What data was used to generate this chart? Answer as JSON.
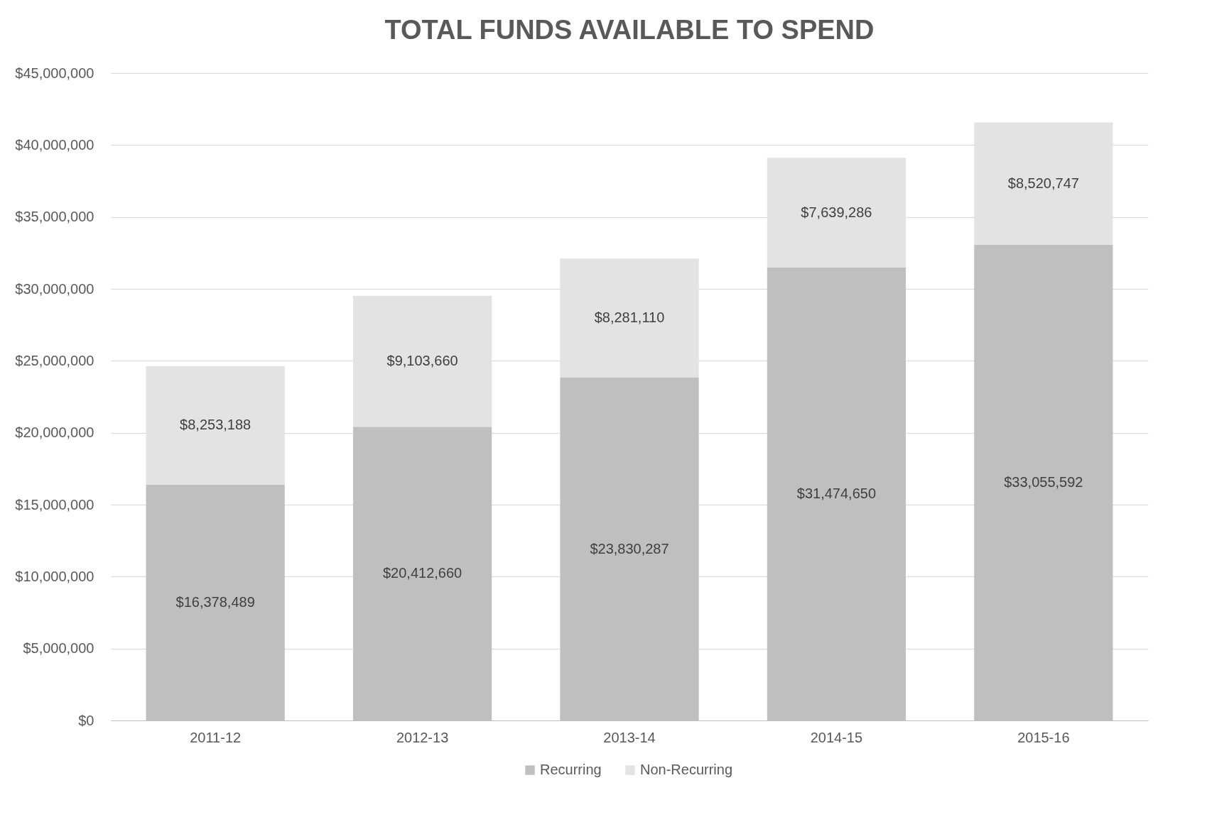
{
  "chart_data": {
    "type": "bar",
    "title": "TOTAL FUNDS AVAILABLE TO SPEND",
    "stacked": true,
    "grid": "y",
    "legend": "bottom",
    "categories": [
      "2011-12",
      "2012-13",
      "2013-14",
      "2014-15",
      "2015-16"
    ],
    "series": [
      {
        "name": "Recurring",
        "color": "#bfbfbf",
        "values": [
          16378489,
          20412660,
          23830287,
          31474650,
          33055592
        ],
        "value_labels": [
          "$16,378,489",
          "$20,412,660",
          "$23,830,287",
          "$31,474,650",
          "$33,055,592"
        ]
      },
      {
        "name": "Non-Recurring",
        "color": "#e3e3e3",
        "values": [
          8253188,
          9103660,
          8281110,
          7639286,
          8520747
        ],
        "value_labels": [
          "$8,253,188",
          "$9,103,660",
          "$8,281,110",
          "$7,639,286",
          "$8,520,747"
        ]
      }
    ],
    "ylim": [
      0,
      45000000
    ],
    "yticks": [
      {
        "value": 0,
        "label": "$0"
      },
      {
        "value": 5000000,
        "label": "$5,000,000"
      },
      {
        "value": 10000000,
        "label": "$10,000,000"
      },
      {
        "value": 15000000,
        "label": "$15,000,000"
      },
      {
        "value": 20000000,
        "label": "$20,000,000"
      },
      {
        "value": 25000000,
        "label": "$25,000,000"
      },
      {
        "value": 30000000,
        "label": "$30,000,000"
      },
      {
        "value": 35000000,
        "label": "$35,000,000"
      },
      {
        "value": 40000000,
        "label": "$40,000,000"
      },
      {
        "value": 45000000,
        "label": "$45,000,000"
      }
    ]
  }
}
